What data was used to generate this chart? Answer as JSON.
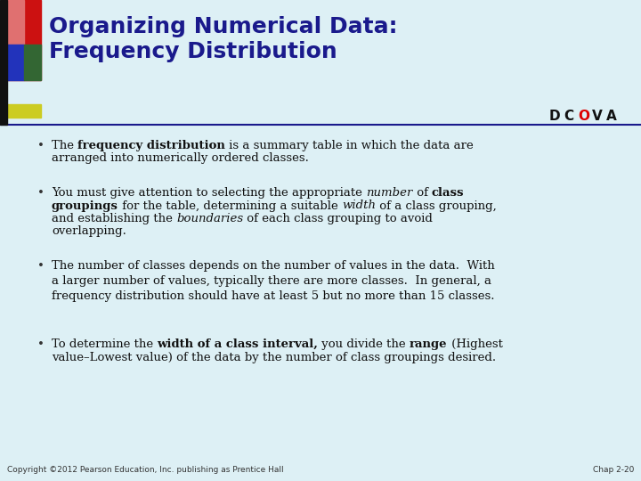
{
  "title_line1": "Organizing Numerical Data:",
  "title_line2": "Frequency Distribution",
  "title_color": "#1a1a8c",
  "bg_color": "#ddf0f5",
  "separator_color": "#1a1a8c",
  "footer_left": "Copyright ©2012 Pearson Education, Inc. publishing as Prentice Hall",
  "footer_right": "Chap 2-20",
  "footer_color": "#333333",
  "dcova_letters": [
    "D",
    "C",
    "O",
    "V",
    "A"
  ],
  "dcova_colors": [
    "#111111",
    "#111111",
    "#dd0000",
    "#111111",
    "#111111"
  ],
  "bullet1_plain": "The ",
  "bullet1_bold": "frequency distribution",
  "bullet1_rest": " is a summary table in which the data are\narranged into numerically ordered classes.",
  "bullet2_line1a": "You must give attention to selecting the appropriate ",
  "bullet2_line1b": "number",
  "bullet2_line1c": " of ",
  "bullet2_line1d": "class",
  "bullet2_line2a": "groupings",
  "bullet2_line2b": " for the table, determining a suitable ",
  "bullet2_line2c": "width",
  "bullet2_line2d": " of a class grouping,",
  "bullet2_line3a": "and establishing the ",
  "bullet2_line3b": "boundaries",
  "bullet2_line3c": " of each class grouping to avoid",
  "bullet2_line4": "overlapping.",
  "bullet3": "The number of classes depends on the number of values in the data.  With\na larger number of values, typically there are more classes.  In general, a\nfrequency distribution should have at least 5 but no more than 15 classes.",
  "bullet4a": "To determine the ",
  "bullet4b": "width of a class interval,",
  "bullet4c": " you divide the ",
  "bullet4d": "range",
  "bullet4e": " (Highest\nvalue–Lowest value) of the data by the number of class groupings desired."
}
